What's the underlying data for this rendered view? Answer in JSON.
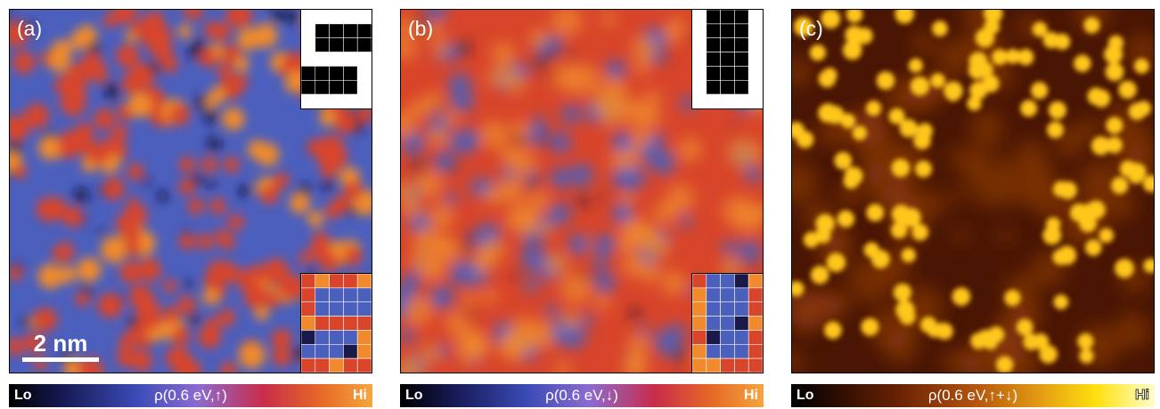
{
  "panels": [
    {
      "label": "(a)",
      "colorbar": {
        "lo": "Lo",
        "mid": "ρ(0.6 eV,↑)",
        "hi": "Hi"
      },
      "inset_letter": "S"
    },
    {
      "label": "(b)",
      "colorbar": {
        "lo": "Lo",
        "mid": "ρ(0.6 eV,↓)",
        "hi": "Hi"
      },
      "inset_letter": "U"
    },
    {
      "label": "(c)",
      "colorbar": {
        "lo": "Lo",
        "mid": "ρ(0.6 eV,↑+↓)",
        "hi": "Hi"
      }
    }
  ],
  "scalebar": "2 nm",
  "colors": {
    "spin_blue": "#4b5fbd",
    "spin_red": "#d8452a",
    "spin_orange": "#f08a2c",
    "total_dark": "#4a1604",
    "total_mid": "#8e3a08",
    "total_bright": "#ffc61a"
  }
}
